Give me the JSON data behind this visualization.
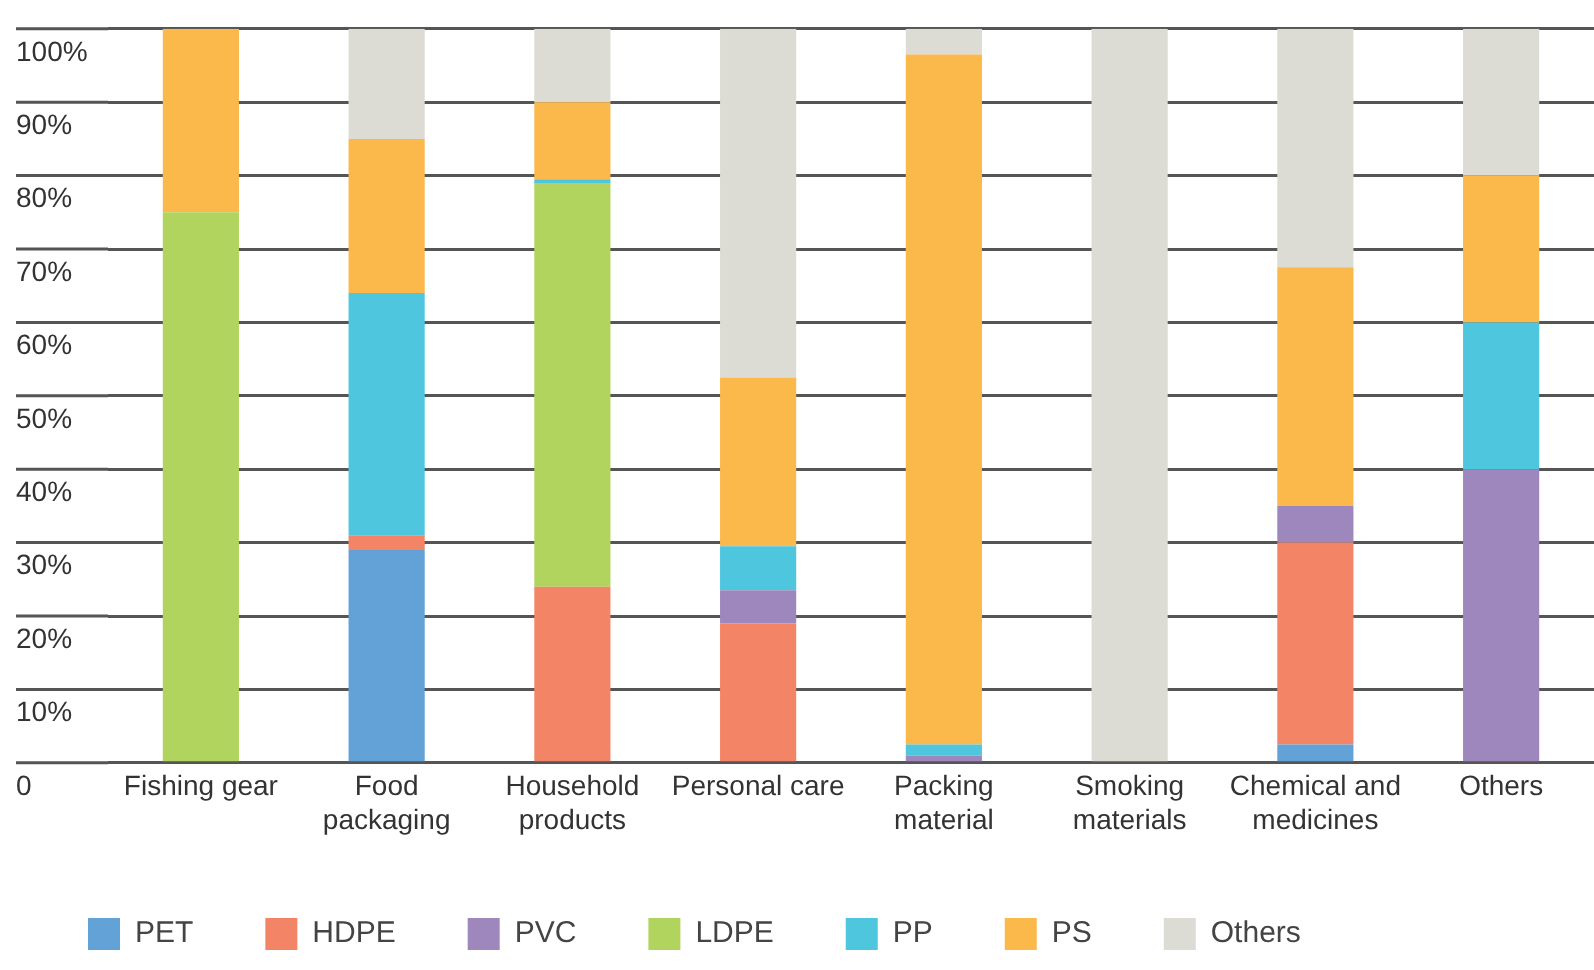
{
  "chart_data": {
    "type": "bar",
    "stacked": true,
    "categories": [
      "Fishing gear",
      "Food packaging",
      "Household products",
      "Personal care",
      "Packing material",
      "Smoking materials",
      "Chemical and medicines",
      "Others"
    ],
    "series": [
      {
        "name": "PET",
        "color": "#62a2d6",
        "values": [
          0,
          29,
          0,
          0,
          0,
          0,
          2.5,
          0
        ]
      },
      {
        "name": "HDPE",
        "color": "#f48466",
        "values": [
          0,
          2,
          24,
          19,
          0,
          0,
          27.5,
          0
        ]
      },
      {
        "name": "PVC",
        "color": "#9d87bd",
        "values": [
          0,
          0,
          0,
          4.5,
          1,
          0,
          5,
          40
        ]
      },
      {
        "name": "LDPE",
        "color": "#b0d45e",
        "values": [
          75,
          0,
          55,
          0,
          0,
          0,
          0,
          0
        ]
      },
      {
        "name": "PP",
        "color": "#4ec6de",
        "values": [
          0,
          33,
          0.5,
          6,
          1.5,
          0,
          0,
          20
        ]
      },
      {
        "name": "PS",
        "color": "#fbb84b",
        "values": [
          25,
          21,
          10.5,
          23,
          94,
          0,
          32.5,
          20
        ]
      },
      {
        "name": "Others",
        "color": "#dcdcd4",
        "values": [
          0,
          15,
          10,
          47.5,
          3.5,
          100,
          32.5,
          20
        ]
      }
    ],
    "ylim": [
      0,
      100
    ],
    "yticks": [
      {
        "value": 0,
        "label": "0"
      },
      {
        "value": 10,
        "label": "10%"
      },
      {
        "value": 20,
        "label": "20%"
      },
      {
        "value": 30,
        "label": "30%"
      },
      {
        "value": 40,
        "label": "40%"
      },
      {
        "value": 50,
        "label": "50%"
      },
      {
        "value": 60,
        "label": "60%"
      },
      {
        "value": 70,
        "label": "70%"
      },
      {
        "value": 80,
        "label": "80%"
      },
      {
        "value": 90,
        "label": "90%"
      },
      {
        "value": 100,
        "label": "100%"
      }
    ],
    "grid": "y",
    "legend": "bottom"
  }
}
